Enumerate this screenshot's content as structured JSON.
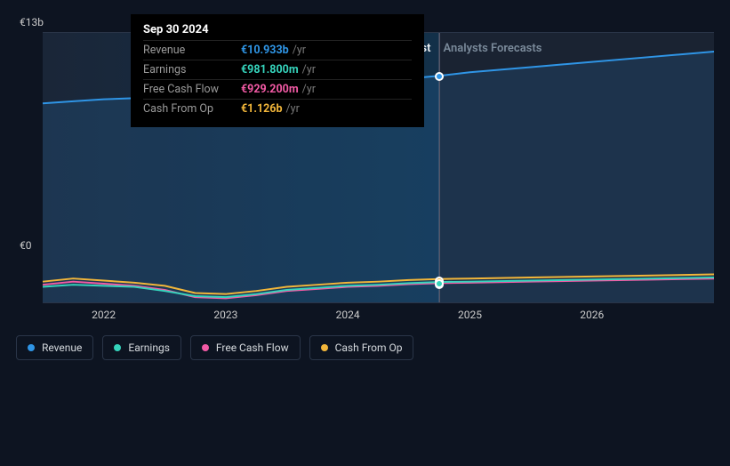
{
  "chart": {
    "type": "line-area",
    "background_color": "#0d1421",
    "plot_bg_past": "linear-gradient(90deg,#1a2638,#133049)",
    "plot_bg_future": "#1a2332",
    "grid_color": "#2a3548",
    "y_axis": {
      "min": 0,
      "max": 13,
      "unit_prefix": "€",
      "unit_suffix": "b",
      "top_label": "€13b",
      "bottom_label": "€0"
    },
    "x_axis": {
      "min_year": 2021.5,
      "max_year": 2027.0,
      "ticks": [
        2022,
        2023,
        2024,
        2025,
        2026
      ]
    },
    "hover_year": 2024.75,
    "past_boundary_year": 2024.75,
    "period_labels": {
      "past": "Past",
      "forecast": "Analysts Forecasts"
    },
    "series": [
      {
        "id": "revenue",
        "label": "Revenue",
        "color": "#2f95e6",
        "fill": true,
        "fill_opacity": 0.15,
        "line_width": 2,
        "points": [
          [
            2021.5,
            9.6
          ],
          [
            2021.75,
            9.7
          ],
          [
            2022.0,
            9.8
          ],
          [
            2022.25,
            9.85
          ],
          [
            2022.5,
            9.75
          ],
          [
            2022.75,
            9.9
          ],
          [
            2023.0,
            10.2
          ],
          [
            2023.25,
            10.5
          ],
          [
            2023.5,
            10.3
          ],
          [
            2023.75,
            10.35
          ],
          [
            2024.0,
            10.5
          ],
          [
            2024.25,
            10.6
          ],
          [
            2024.5,
            10.8
          ],
          [
            2024.75,
            10.93
          ],
          [
            2025.0,
            11.1
          ],
          [
            2025.5,
            11.35
          ],
          [
            2026.0,
            11.6
          ],
          [
            2026.5,
            11.85
          ],
          [
            2027.0,
            12.1
          ]
        ]
      },
      {
        "id": "cash_from_op",
        "label": "Cash From Op",
        "color": "#f2b63a",
        "fill": false,
        "line_width": 2,
        "points": [
          [
            2021.5,
            1.0
          ],
          [
            2021.75,
            1.15
          ],
          [
            2022.0,
            1.05
          ],
          [
            2022.25,
            0.95
          ],
          [
            2022.5,
            0.8
          ],
          [
            2022.75,
            0.45
          ],
          [
            2023.0,
            0.4
          ],
          [
            2023.25,
            0.55
          ],
          [
            2023.5,
            0.75
          ],
          [
            2023.75,
            0.85
          ],
          [
            2024.0,
            0.95
          ],
          [
            2024.25,
            1.0
          ],
          [
            2024.5,
            1.08
          ],
          [
            2024.75,
            1.126
          ],
          [
            2025.0,
            1.15
          ],
          [
            2025.5,
            1.2
          ],
          [
            2026.0,
            1.25
          ],
          [
            2026.5,
            1.3
          ],
          [
            2027.0,
            1.35
          ]
        ]
      },
      {
        "id": "free_cash_flow",
        "label": "Free Cash Flow",
        "color": "#f25aa5",
        "fill": false,
        "line_width": 2,
        "points": [
          [
            2021.5,
            0.85
          ],
          [
            2021.75,
            1.0
          ],
          [
            2022.0,
            0.9
          ],
          [
            2022.25,
            0.8
          ],
          [
            2022.5,
            0.6
          ],
          [
            2022.75,
            0.25
          ],
          [
            2023.0,
            0.2
          ],
          [
            2023.25,
            0.35
          ],
          [
            2023.5,
            0.55
          ],
          [
            2023.75,
            0.65
          ],
          [
            2024.0,
            0.75
          ],
          [
            2024.25,
            0.8
          ],
          [
            2024.5,
            0.88
          ],
          [
            2024.75,
            0.929
          ],
          [
            2025.0,
            0.95
          ],
          [
            2025.5,
            1.0
          ],
          [
            2026.0,
            1.05
          ],
          [
            2026.5,
            1.1
          ],
          [
            2027.0,
            1.15
          ]
        ]
      },
      {
        "id": "earnings",
        "label": "Earnings",
        "color": "#35d4bc",
        "fill": false,
        "line_width": 2,
        "points": [
          [
            2021.5,
            0.75
          ],
          [
            2021.75,
            0.85
          ],
          [
            2022.0,
            0.8
          ],
          [
            2022.25,
            0.75
          ],
          [
            2022.5,
            0.55
          ],
          [
            2022.75,
            0.3
          ],
          [
            2023.0,
            0.25
          ],
          [
            2023.25,
            0.4
          ],
          [
            2023.5,
            0.6
          ],
          [
            2023.75,
            0.7
          ],
          [
            2024.0,
            0.8
          ],
          [
            2024.25,
            0.85
          ],
          [
            2024.5,
            0.93
          ],
          [
            2024.75,
            0.982
          ],
          [
            2025.0,
            1.0
          ],
          [
            2025.5,
            1.05
          ],
          [
            2026.0,
            1.1
          ],
          [
            2026.5,
            1.15
          ],
          [
            2027.0,
            1.2
          ]
        ]
      }
    ],
    "legend_order": [
      "revenue",
      "earnings",
      "free_cash_flow",
      "cash_from_op"
    ]
  },
  "tooltip": {
    "date": "Sep 30 2024",
    "rows": [
      {
        "label": "Revenue",
        "value": "€10.933b",
        "unit": "/yr",
        "color": "#2f95e6"
      },
      {
        "label": "Earnings",
        "value": "€981.800m",
        "unit": "/yr",
        "color": "#35d4bc"
      },
      {
        "label": "Free Cash Flow",
        "value": "€929.200m",
        "unit": "/yr",
        "color": "#f25aa5"
      },
      {
        "label": "Cash From Op",
        "value": "€1.126b",
        "unit": "/yr",
        "color": "#f2b63a"
      }
    ]
  }
}
